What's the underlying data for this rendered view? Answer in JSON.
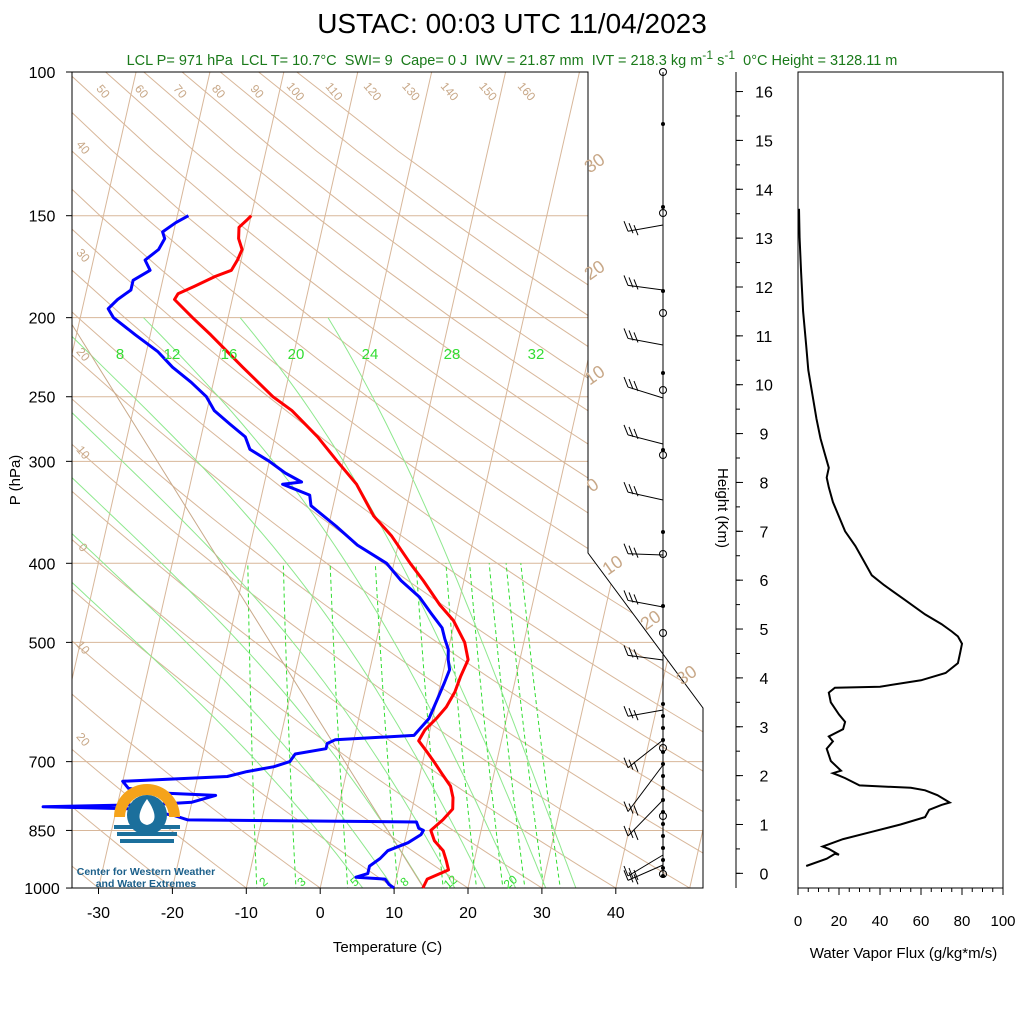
{
  "title": "USTAC: 00:03 UTC 11/04/2023",
  "stats": {
    "lcl_p": "LCL P= 971 hPa",
    "lcl_t": "LCL T= 10.7°C",
    "swi": "SWI= 9",
    "cape": "Cape= 0 J",
    "iwv": "IWV = 21.87 mm",
    "ivt": "IVT = 218.3 kg m",
    "ivt_exp1": "-1",
    "ivt_mid": " s",
    "ivt_exp2": "-1",
    "zero_height": "0°C Height = 3128.11 m"
  },
  "logo": {
    "line1": "Center for Western Weather",
    "line2": "and Water Extremes",
    "colors": {
      "sun": "#f5a31a",
      "water": "#1b6f9c"
    }
  },
  "colors": {
    "temperature": "#ff0000",
    "dewpoint": "#0000ff",
    "isotherm": "#d8b79a",
    "mixing_ratio": "#33dd33",
    "label_tan": "#c8a888",
    "flux": "#000000"
  },
  "chart_data": [
    {
      "type": "line",
      "subtype": "skew-t log-p sounding",
      "xlabel": "Temperature (C)",
      "ylabel": "P (hPa)",
      "xlim": [
        -35,
        52
      ],
      "ylim": [
        1050,
        100
      ],
      "x_ticks": [
        -30,
        -20,
        -10,
        0,
        10,
        20,
        30,
        40
      ],
      "pressure_ticks": [
        100,
        150,
        200,
        250,
        300,
        400,
        500,
        700,
        850,
        1000
      ],
      "mixing_ratio_top_labels": [
        "8",
        "12",
        "16",
        "20",
        "24",
        "28",
        "32"
      ],
      "mixing_ratio_bottom_labels": [
        "2",
        "3",
        "5",
        "8",
        "12",
        "20"
      ],
      "adiabat_labels": [
        "50",
        "60",
        "70",
        "80",
        "90",
        "100",
        "110",
        "120",
        "130",
        "140",
        "150",
        "160"
      ],
      "left_labels": [
        "40",
        "30",
        "20",
        "10",
        "0",
        "10",
        "20"
      ],
      "right_labels": [
        "30",
        "20",
        "10",
        "0",
        "10",
        "20",
        "30"
      ],
      "series": [
        {
          "name": "Temperature",
          "points": [
            [
              1000,
              13.9
            ],
            [
              975,
              14.2
            ],
            [
              950,
              16.8
            ],
            [
              925,
              16.2
            ],
            [
              900,
              15.5
            ],
            [
              875,
              14
            ],
            [
              850,
              13.2
            ],
            [
              825,
              14.5
            ],
            [
              800,
              15.5
            ],
            [
              775,
              15.2
            ],
            [
              750,
              14.5
            ],
            [
              725,
              13
            ],
            [
              700,
              11.5
            ],
            [
              680,
              10.2
            ],
            [
              660,
              8.8
            ],
            [
              640,
              9.3
            ],
            [
              620,
              10.5
            ],
            [
              600,
              11.5
            ],
            [
              575,
              12.2
            ],
            [
              550,
              12.5
            ],
            [
              525,
              13
            ],
            [
              500,
              12
            ],
            [
              470,
              9.8
            ],
            [
              450,
              7.5
            ],
            [
              420,
              4.5
            ],
            [
              400,
              2.2
            ],
            [
              370,
              -1.2
            ],
            [
              350,
              -4.2
            ],
            [
              320,
              -7.5
            ],
            [
              300,
              -10.8
            ],
            [
              280,
              -14.2
            ],
            [
              260,
              -18.5
            ],
            [
              250,
              -21.5
            ],
            [
              230,
              -26.5
            ],
            [
              210,
              -31.8
            ],
            [
              200,
              -34.8
            ],
            [
              190,
              -37.8
            ],
            [
              187,
              -37.5
            ],
            [
              183,
              -35.5
            ],
            [
              178,
              -33
            ],
            [
              175,
              -31
            ],
            [
              170,
              -30.5
            ],
            [
              165,
              -30.2
            ],
            [
              160,
              -31
            ],
            [
              155,
              -31.3
            ],
            [
              152,
              -30.5
            ],
            [
              150,
              -30
            ]
          ]
        },
        {
          "name": "Dewpoint",
          "points": [
            [
              1000,
              10
            ],
            [
              990,
              9.2
            ],
            [
              975,
              8.5
            ],
            [
              970,
              4.5
            ],
            [
              960,
              6
            ],
            [
              940,
              6
            ],
            [
              920,
              7.2
            ],
            [
              900,
              8
            ],
            [
              880,
              10.5
            ],
            [
              860,
              12
            ],
            [
              850,
              12.2
            ],
            [
              845,
              11.5
            ],
            [
              830,
              11
            ],
            [
              825,
              -20
            ],
            [
              815,
              -22
            ],
            [
              800,
              -27
            ],
            [
              795,
              -40
            ],
            [
              790,
              -25
            ],
            [
              785,
              -20
            ],
            [
              770,
              -17
            ],
            [
              765,
              -24
            ],
            [
              755,
              -29
            ],
            [
              740,
              -30
            ],
            [
              730,
              -16
            ],
            [
              720,
              -13.5
            ],
            [
              710,
              -10
            ],
            [
              700,
              -8
            ],
            [
              685,
              -7.5
            ],
            [
              675,
              -3.5
            ],
            [
              665,
              -3.5
            ],
            [
              658,
              -2.5
            ],
            [
              650,
              8
            ],
            [
              620,
              9.5
            ],
            [
              590,
              10
            ],
            [
              560,
              10.5
            ],
            [
              540,
              10.8
            ],
            [
              525,
              10.3
            ],
            [
              510,
              10
            ],
            [
              495,
              9.2
            ],
            [
              480,
              8.5
            ],
            [
              460,
              6.5
            ],
            [
              440,
              4.5
            ],
            [
              420,
              1.5
            ],
            [
              400,
              -1
            ],
            [
              380,
              -5.5
            ],
            [
              360,
              -9
            ],
            [
              340,
              -13
            ],
            [
              330,
              -13.5
            ],
            [
              320,
              -17.5
            ],
            [
              318,
              -15
            ],
            [
              310,
              -17.5
            ],
            [
              300,
              -20
            ],
            [
              290,
              -23
            ],
            [
              280,
              -24
            ],
            [
              270,
              -26.5
            ],
            [
              260,
              -29
            ],
            [
              250,
              -30.5
            ],
            [
              240,
              -33
            ],
            [
              230,
              -36
            ],
            [
              220,
              -38.5
            ],
            [
              210,
              -42
            ],
            [
              200,
              -45.5
            ],
            [
              195,
              -46.5
            ],
            [
              190,
              -45.5
            ],
            [
              185,
              -44
            ],
            [
              180,
              -44
            ],
            [
              175,
              -42
            ],
            [
              170,
              -43
            ],
            [
              165,
              -41.5
            ],
            [
              160,
              -41
            ],
            [
              157,
              -41.5
            ],
            [
              153,
              -40
            ],
            [
              150,
              -38.5
            ]
          ]
        }
      ]
    },
    {
      "type": "line",
      "xlabel": "Water Vapor Flux (g/kg*m/s)",
      "ylabel": "Height (Km)",
      "xlim": [
        0,
        100
      ],
      "ylim": [
        -0.3,
        16.4
      ],
      "x_ticks": [
        0,
        20,
        40,
        60,
        80,
        100
      ],
      "y_ticks": [
        0,
        1,
        2,
        3,
        4,
        5,
        6,
        7,
        8,
        9,
        10,
        11,
        12,
        13,
        14,
        15,
        16
      ],
      "series": [
        {
          "name": "",
          "points": [
            [
              4,
              0.15
            ],
            [
              14,
              0.3
            ],
            [
              18,
              0.4
            ],
            [
              20,
              0.38
            ],
            [
              15,
              0.5
            ],
            [
              12,
              0.55
            ],
            [
              22,
              0.7
            ],
            [
              36,
              0.85
            ],
            [
              50,
              1.0
            ],
            [
              62,
              1.15
            ],
            [
              64,
              1.3
            ],
            [
              70,
              1.4
            ],
            [
              74,
              1.45
            ],
            [
              68,
              1.6
            ],
            [
              62,
              1.7
            ],
            [
              55,
              1.75
            ],
            [
              30,
              1.8
            ],
            [
              23,
              1.95
            ],
            [
              20,
              2.0
            ],
            [
              17,
              2.05
            ],
            [
              21,
              2.1
            ],
            [
              16,
              2.3
            ],
            [
              14,
              2.55
            ],
            [
              17,
              2.7
            ],
            [
              15,
              2.8
            ],
            [
              22,
              2.95
            ],
            [
              23,
              3.1
            ],
            [
              20,
              3.25
            ],
            [
              16,
              3.5
            ],
            [
              15,
              3.7
            ],
            [
              18,
              3.8
            ],
            [
              40,
              3.82
            ],
            [
              60,
              3.95
            ],
            [
              72,
              4.1
            ],
            [
              78,
              4.3
            ],
            [
              79,
              4.5
            ],
            [
              80,
              4.7
            ],
            [
              78,
              4.85
            ],
            [
              75,
              4.95
            ],
            [
              70,
              5.1
            ],
            [
              62,
              5.3
            ],
            [
              52,
              5.6
            ],
            [
              42,
              5.9
            ],
            [
              36,
              6.1
            ],
            [
              32,
              6.4
            ],
            [
              28,
              6.7
            ],
            [
              23,
              7.0
            ],
            [
              20,
              7.3
            ],
            [
              17,
              7.6
            ],
            [
              15,
              7.9
            ],
            [
              14,
              8.1
            ],
            [
              15,
              8.3
            ],
            [
              13,
              8.6
            ],
            [
              11,
              8.9
            ],
            [
              9,
              9.3
            ],
            [
              7,
              9.8
            ],
            [
              5,
              10.3
            ],
            [
              4,
              10.8
            ],
            [
              2.5,
              11.5
            ],
            [
              1.5,
              12.3
            ],
            [
              0.8,
              13.0
            ],
            [
              0.5,
              13.6
            ]
          ]
        }
      ]
    }
  ]
}
